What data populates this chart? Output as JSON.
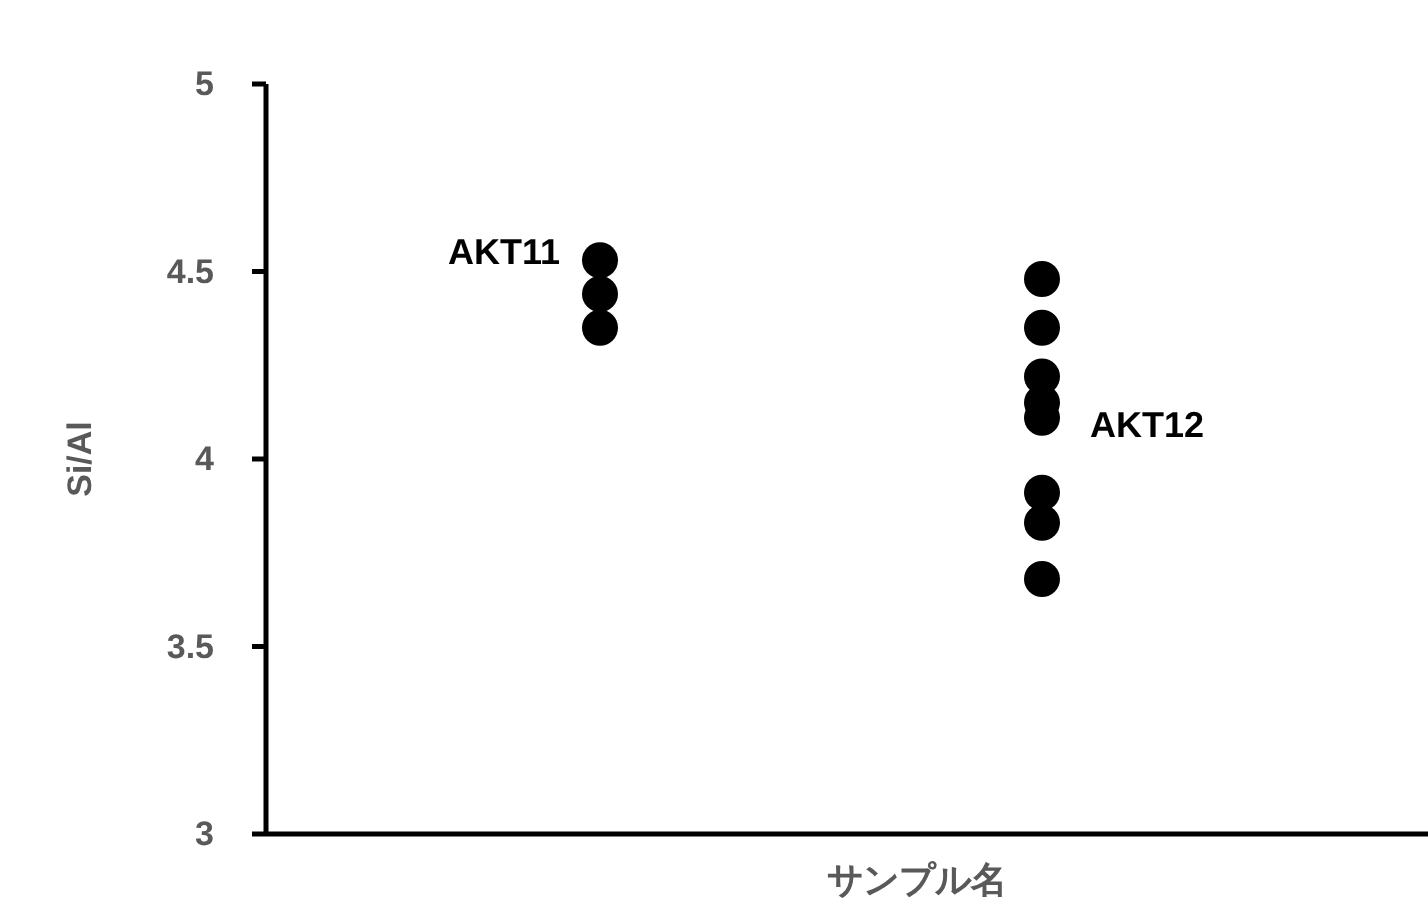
{
  "chart_data": {
    "type": "scatter",
    "xlabel": "サンプル名",
    "ylabel": "Si/Al",
    "categories": [
      "AKT11",
      "AKT12"
    ],
    "ylim": [
      3,
      5
    ],
    "yticks": [
      3,
      3.5,
      4,
      4.5,
      5
    ],
    "grid": false,
    "marker": "circle",
    "series": [
      {
        "color": "#000000",
        "x": [
          "AKT11",
          "AKT11",
          "AKT11",
          "AKT12",
          "AKT12",
          "AKT12",
          "AKT12",
          "AKT12",
          "AKT12",
          "AKT12",
          "AKT12"
        ],
        "values": [
          4.35,
          4.44,
          4.53,
          4.48,
          4.35,
          4.22,
          4.15,
          4.11,
          3.91,
          3.83,
          3.68
        ]
      }
    ]
  }
}
